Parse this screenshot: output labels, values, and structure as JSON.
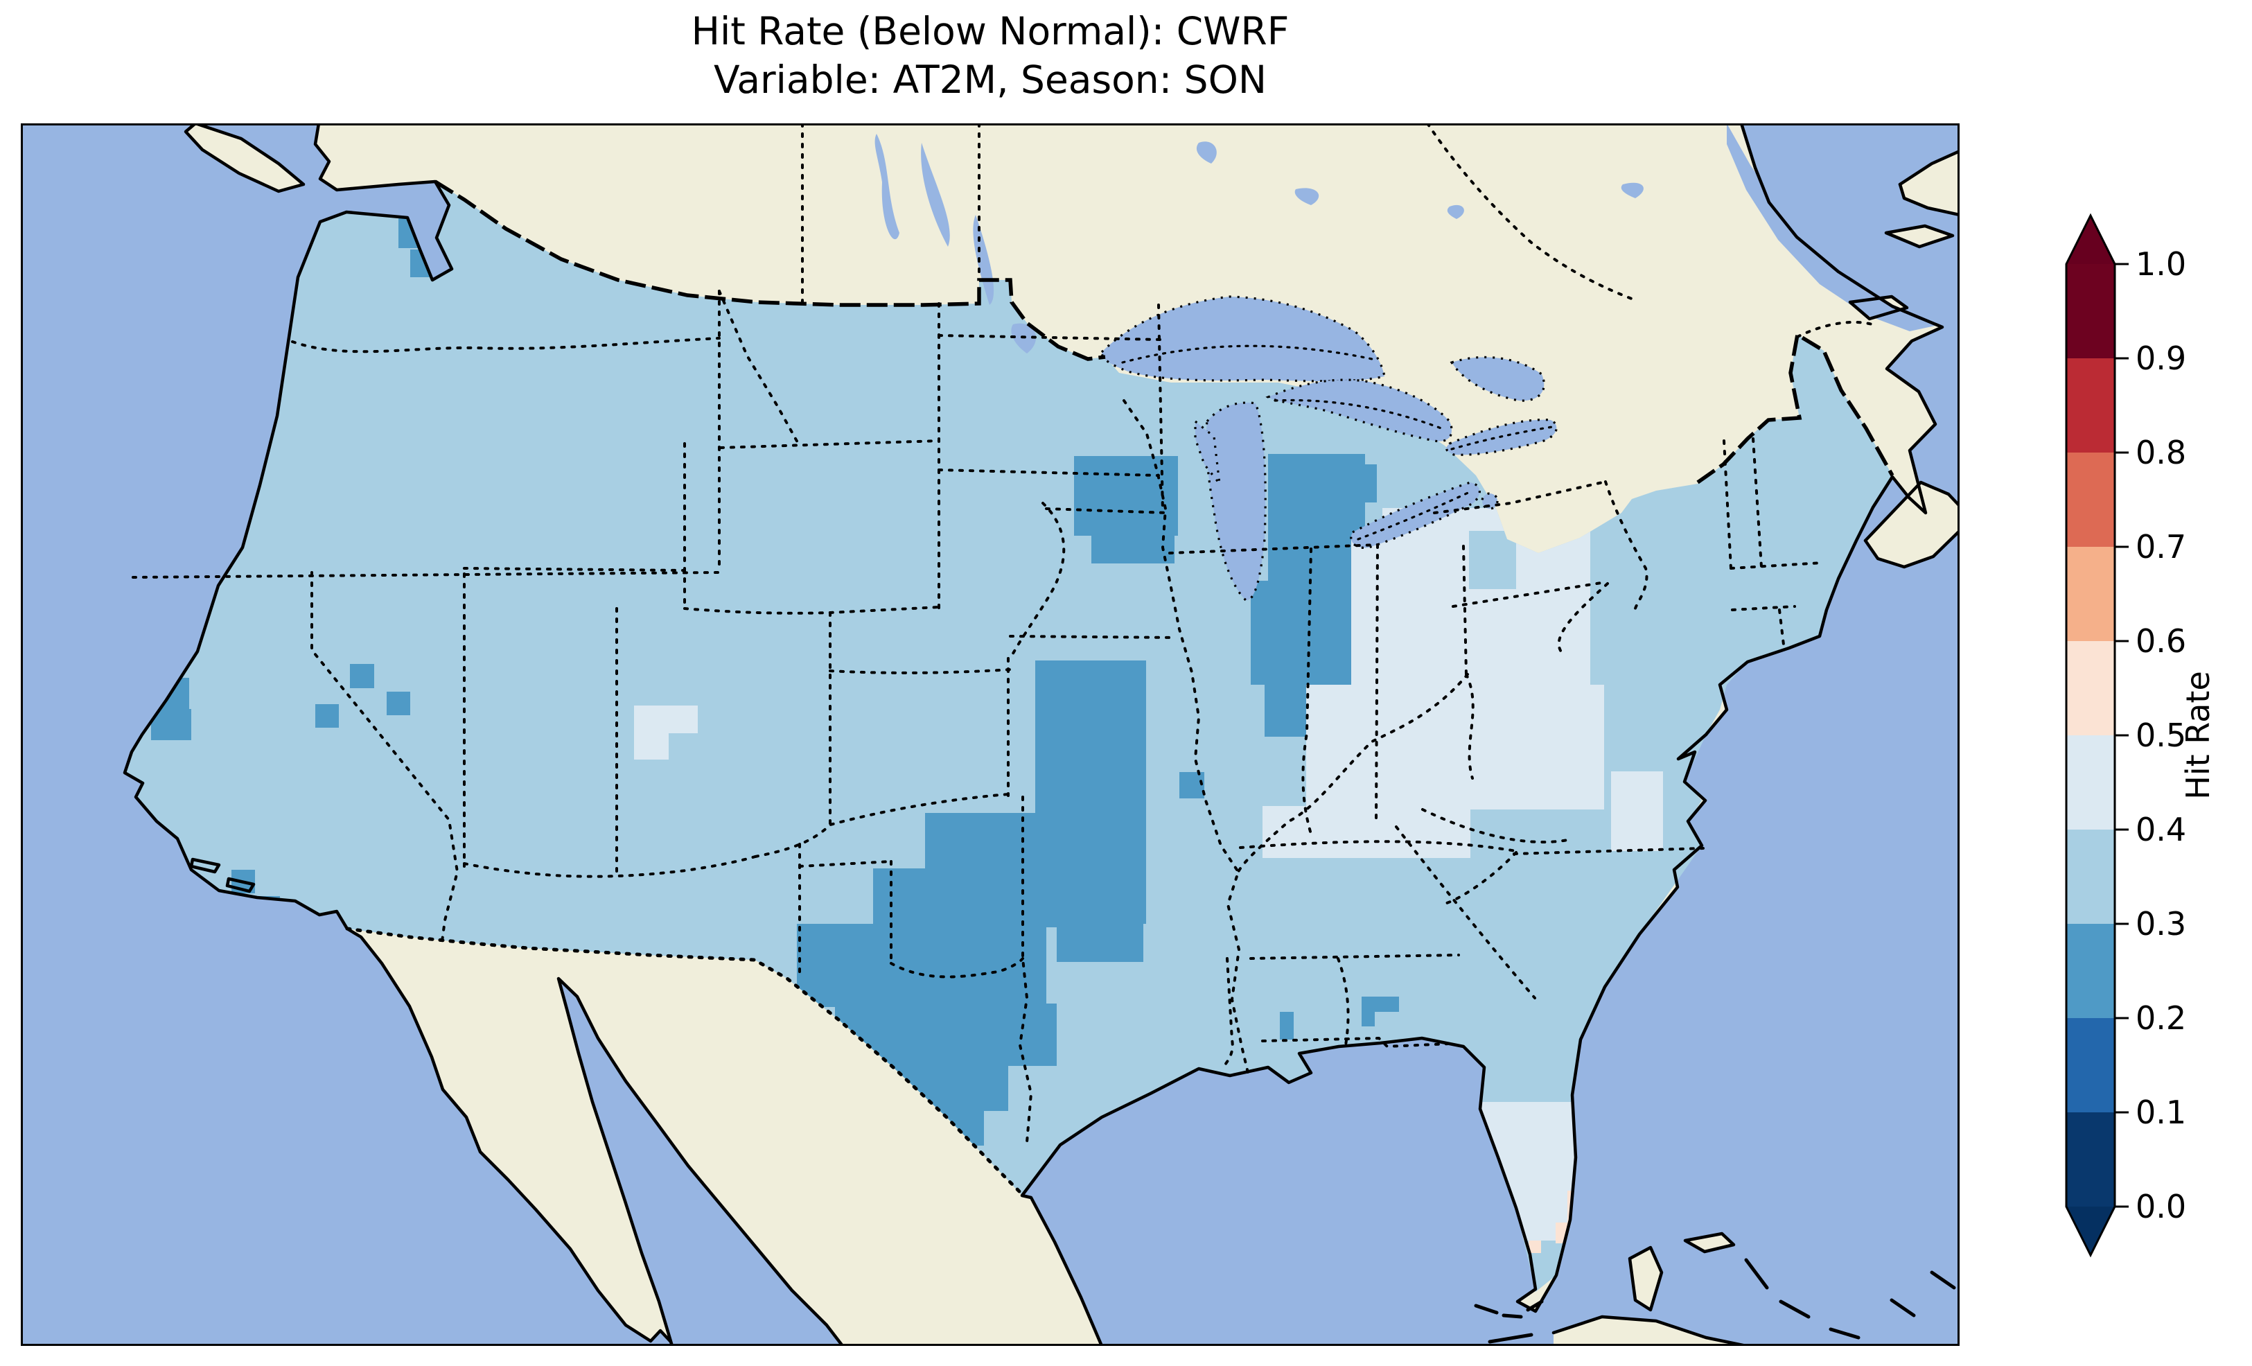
{
  "title": {
    "line1": "Hit Rate (Below Normal): CWRF",
    "line2": "Variable: AT2M, Season: SON"
  },
  "colorbar": {
    "label": "Hit Rate",
    "ticks": [
      "1.0",
      "0.9",
      "0.8",
      "0.7",
      "0.6",
      "0.5",
      "0.4",
      "0.3",
      "0.2",
      "0.1",
      "0.0"
    ],
    "over_color": "#67001f",
    "under_color": "#053061",
    "outline_color": "#000000"
  },
  "map_colors": {
    "ocean": "#97b5e2",
    "lake": "#97b5e2",
    "land": "#f0eedb",
    "coastline": "#000000",
    "frame": "#000000"
  },
  "chart_data": {
    "type": "heatmap",
    "title": "Hit Rate (Below Normal): CWRF",
    "subtitle": "Variable: AT2M, Season: SON",
    "metric": "Hit Rate (Below Normal)",
    "model": "CWRF",
    "variable": "AT2M",
    "season": "SON",
    "region": "Contiguous United States (gridded)",
    "value_range": [
      0.0,
      1.0
    ],
    "bin_width": 0.1,
    "colorbar_extend": "both",
    "bins": [
      {
        "range": "0.0-0.1",
        "color": "#09386d"
      },
      {
        "range": "0.1-0.2",
        "color": "#2367ac"
      },
      {
        "range": "0.2-0.3",
        "color": "#4f9ac6"
      },
      {
        "range": "0.3-0.4",
        "color": "#a8cfe3"
      },
      {
        "range": "0.4-0.5",
        "color": "#dce9f2"
      },
      {
        "range": "0.5-0.6",
        "color": "#fbe3d4"
      },
      {
        "range": "0.6-0.7",
        "color": "#f5b08a"
      },
      {
        "range": "0.7-0.8",
        "color": "#dd6a54"
      },
      {
        "range": "0.8-0.9",
        "color": "#bb2b34"
      },
      {
        "range": "0.9-1.0",
        "color": "#6d0220"
      }
    ],
    "default_bin": "0.3-0.4",
    "default_value_estimate": 0.35,
    "patches": [
      {
        "bin": "0.2-0.3",
        "value_estimate": 0.25,
        "note": "darker blue cells: Wisconsin, Michigan mitten, Missouri-Arkansas band, Oklahoma/N-Texas blob, scattered west-coast and southeast cells",
        "rects": [
          [
            1520,
            480,
            150,
            115
          ],
          [
            1545,
            570,
            120,
            65
          ],
          [
            1800,
            477,
            140,
            230
          ],
          [
            1775,
            660,
            180,
            150
          ],
          [
            1795,
            795,
            125,
            90
          ],
          [
            1464,
            775,
            160,
            380
          ],
          [
            1495,
            1150,
            125,
            60
          ],
          [
            1305,
            995,
            160,
            85
          ],
          [
            1230,
            1075,
            300,
            85
          ],
          [
            1120,
            1155,
            360,
            120
          ],
          [
            1175,
            1270,
            320,
            90
          ],
          [
            1245,
            1355,
            180,
            70
          ],
          [
            1290,
            1420,
            100,
            55
          ],
          [
            545,
            135,
            45,
            45
          ],
          [
            562,
            182,
            40,
            40
          ],
          [
            108,
            405,
            28,
            28
          ],
          [
            95,
            448,
            30,
            30
          ],
          [
            165,
            800,
            78,
            48
          ],
          [
            188,
            845,
            58,
            45
          ],
          [
            304,
            1077,
            34,
            34
          ],
          [
            340,
            1115,
            34,
            34
          ],
          [
            475,
            780,
            35,
            35
          ],
          [
            425,
            838,
            34,
            34
          ],
          [
            528,
            820,
            34,
            34
          ],
          [
            1915,
            492,
            42,
            55
          ],
          [
            1672,
            936,
            36,
            38
          ],
          [
            1817,
            1282,
            20,
            40
          ],
          [
            1935,
            1260,
            54,
            22
          ],
          [
            1935,
            1282,
            19,
            21
          ]
        ]
      },
      {
        "bin": "0.4-0.5",
        "value_estimate": 0.45,
        "note": "pale cells: Ohio valley / Appalachians, Delmarva, central Utah cell, south Florida",
        "rects": [
          [
            1920,
            600,
            120,
            210
          ],
          [
            1965,
            555,
            300,
            280
          ],
          [
            1855,
            810,
            430,
            180
          ],
          [
            1792,
            985,
            300,
            75
          ],
          [
            2295,
            935,
            75,
            115
          ],
          [
            885,
            840,
            50,
            78
          ],
          [
            885,
            840,
            92,
            40
          ],
          [
            2075,
            1412,
            180,
            200
          ]
        ]
      },
      {
        "bin": "0.3-0.4",
        "value_estimate": 0.35,
        "note": "medium-blue island inside the pale Ohio-valley region",
        "rects": [
          [
            2090,
            588,
            68,
            84
          ]
        ]
      },
      {
        "bin": "0.5-0.6",
        "value_estimate": 0.55,
        "note": "pale-peach cells near Miami and the Florida Keys",
        "rects": [
          [
            2232,
            1540,
            34,
            64
          ],
          [
            2215,
            1586,
            30,
            30
          ],
          [
            2107,
            1612,
            18,
            18
          ],
          [
            2141,
            1612,
            18,
            18
          ],
          [
            2176,
            1612,
            18,
            18
          ]
        ]
      }
    ]
  }
}
